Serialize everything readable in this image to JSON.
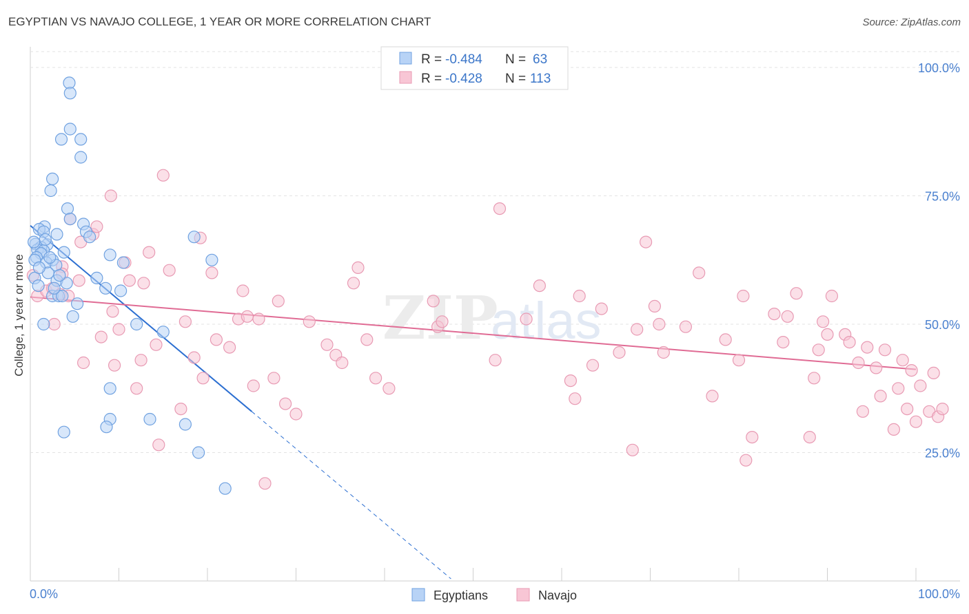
{
  "chart_data": {
    "type": "scatter",
    "title": "EGYPTIAN VS NAVAJO COLLEGE, 1 YEAR OR MORE CORRELATION CHART",
    "source": "Source: ZipAtlas.com",
    "xlabel": "",
    "ylabel": "College, 1 year or more",
    "xlim": [
      0,
      100
    ],
    "ylim": [
      0,
      104
    ],
    "x_tick_labels": {
      "left": "0.0%",
      "right": "100.0%"
    },
    "y_ticks": [
      {
        "value": 25,
        "label": "25.0%"
      },
      {
        "value": 50,
        "label": "50.0%"
      },
      {
        "value": 75,
        "label": "75.0%"
      },
      {
        "value": 100,
        "label": "100.0%"
      }
    ],
    "grid": true,
    "watermark": "ZIPatlas",
    "legend": {
      "stats": [
        {
          "r_label": "R = ",
          "r_value": "-0.484",
          "n_label": "N = ",
          "n_value": "63"
        },
        {
          "r_label": "R = ",
          "r_value": "-0.428",
          "n_label": "N = ",
          "n_value": "113"
        }
      ],
      "position": "top-center"
    },
    "colors": {
      "egyptians_fill": "#b8d3f6",
      "egyptians_stroke": "#6fa1e0",
      "egyptians_line": "#2c6fd1",
      "navajo_fill": "#f8c6d5",
      "navajo_stroke": "#e89ab3",
      "navajo_line": "#e06b94",
      "value_text": "#3b76c9",
      "tick_text": "#4a80cf"
    },
    "series": [
      {
        "name": "Egyptians",
        "trend": {
          "x0": 0,
          "y0": 69.2,
          "x1": 25,
          "y1": 33.0,
          "dash_to_x": 47.5
        },
        "points": [
          [
            4.4,
            97.0
          ],
          [
            4.5,
            95.0
          ],
          [
            4.5,
            88.0
          ],
          [
            3.5,
            86.0
          ],
          [
            5.7,
            86.0
          ],
          [
            5.7,
            82.5
          ],
          [
            2.5,
            78.3
          ],
          [
            2.3,
            76.0
          ],
          [
            4.2,
            72.5
          ],
          [
            6.0,
            69.5
          ],
          [
            1.6,
            69.0
          ],
          [
            1.0,
            68.5
          ],
          [
            1.5,
            68.0
          ],
          [
            6.3,
            68.0
          ],
          [
            3.0,
            67.5
          ],
          [
            4.5,
            70.5
          ],
          [
            6.7,
            67.0
          ],
          [
            18.5,
            67.0
          ],
          [
            0.6,
            65.6
          ],
          [
            1.9,
            65.5
          ],
          [
            1.2,
            65.0
          ],
          [
            0.8,
            64.5
          ],
          [
            1.5,
            64.3
          ],
          [
            1.2,
            63.8
          ],
          [
            0.7,
            63.0
          ],
          [
            3.8,
            64.0
          ],
          [
            9.0,
            63.5
          ],
          [
            2.5,
            62.5
          ],
          [
            1.8,
            62.0
          ],
          [
            2.9,
            61.5
          ],
          [
            0.5,
            62.5
          ],
          [
            10.5,
            62.0
          ],
          [
            20.5,
            62.5
          ],
          [
            3.0,
            58.5
          ],
          [
            4.1,
            58.0
          ],
          [
            8.5,
            57.0
          ],
          [
            10.2,
            56.5
          ],
          [
            2.5,
            55.5
          ],
          [
            3.2,
            55.5
          ],
          [
            3.6,
            55.5
          ],
          [
            5.3,
            54.0
          ],
          [
            4.8,
            51.5
          ],
          [
            1.5,
            50.0
          ],
          [
            15.0,
            48.5
          ],
          [
            9.0,
            37.5
          ],
          [
            9.0,
            31.5
          ],
          [
            13.5,
            31.5
          ],
          [
            8.6,
            30.0
          ],
          [
            17.5,
            30.5
          ],
          [
            3.8,
            29.0
          ],
          [
            19.0,
            25.0
          ],
          [
            22.0,
            18.0
          ],
          [
            0.5,
            59.0
          ],
          [
            2.0,
            60.0
          ],
          [
            1.0,
            61.0
          ],
          [
            2.2,
            63.0
          ],
          [
            0.4,
            66.0
          ],
          [
            1.7,
            66.5
          ],
          [
            3.3,
            59.5
          ],
          [
            7.5,
            59.0
          ],
          [
            0.9,
            57.5
          ],
          [
            2.7,
            57.0
          ],
          [
            12.0,
            50.0
          ]
        ]
      },
      {
        "name": "Navajo",
        "trend": {
          "x0": 0,
          "y0": 55.3,
          "x1": 100,
          "y1": 41.2
        },
        "points": [
          [
            0.3,
            59.5
          ],
          [
            0.8,
            55.5
          ],
          [
            1.8,
            56.5
          ],
          [
            2.5,
            57.0
          ],
          [
            3.4,
            55.8
          ],
          [
            4.3,
            55.5
          ],
          [
            2.7,
            50.0
          ],
          [
            3.6,
            61.2
          ],
          [
            3.6,
            59.8
          ],
          [
            4.5,
            70.5
          ],
          [
            5.5,
            58.5
          ],
          [
            5.7,
            66.0
          ],
          [
            6.0,
            42.5
          ],
          [
            7.1,
            67.5
          ],
          [
            7.5,
            69.0
          ],
          [
            8.0,
            47.5
          ],
          [
            9.1,
            75.0
          ],
          [
            9.3,
            52.5
          ],
          [
            9.5,
            42.0
          ],
          [
            10.0,
            49.0
          ],
          [
            10.7,
            62.0
          ],
          [
            11.2,
            58.5
          ],
          [
            12.0,
            37.5
          ],
          [
            12.5,
            43.0
          ],
          [
            12.8,
            58.0
          ],
          [
            13.4,
            64.0
          ],
          [
            14.2,
            46.0
          ],
          [
            14.5,
            26.5
          ],
          [
            15.0,
            79.0
          ],
          [
            15.7,
            60.5
          ],
          [
            17.0,
            33.5
          ],
          [
            17.5,
            50.5
          ],
          [
            18.5,
            43.5
          ],
          [
            19.2,
            66.8
          ],
          [
            19.5,
            39.5
          ],
          [
            20.5,
            60.0
          ],
          [
            21.0,
            47.0
          ],
          [
            22.5,
            45.5
          ],
          [
            23.5,
            51.0
          ],
          [
            24.0,
            56.5
          ],
          [
            24.5,
            51.5
          ],
          [
            25.2,
            38.0
          ],
          [
            25.8,
            51.0
          ],
          [
            26.5,
            19.0
          ],
          [
            27.5,
            39.5
          ],
          [
            28.0,
            54.5
          ],
          [
            28.8,
            34.5
          ],
          [
            30.0,
            32.5
          ],
          [
            31.5,
            50.5
          ],
          [
            33.5,
            46.0
          ],
          [
            34.5,
            44.0
          ],
          [
            35.2,
            42.5
          ],
          [
            36.5,
            58.0
          ],
          [
            37.0,
            61.0
          ],
          [
            38.0,
            47.0
          ],
          [
            39.0,
            39.5
          ],
          [
            40.5,
            37.5
          ],
          [
            45.5,
            54.5
          ],
          [
            46.0,
            49.5
          ],
          [
            46.5,
            50.5
          ],
          [
            52.5,
            43.0
          ],
          [
            53.0,
            72.5
          ],
          [
            56.0,
            51.0
          ],
          [
            57.5,
            57.5
          ],
          [
            61.0,
            39.0
          ],
          [
            61.5,
            35.5
          ],
          [
            62.0,
            55.5
          ],
          [
            63.5,
            42.0
          ],
          [
            64.5,
            53.0
          ],
          [
            66.5,
            44.5
          ],
          [
            68.0,
            25.5
          ],
          [
            68.5,
            49.0
          ],
          [
            69.5,
            66.0
          ],
          [
            70.5,
            53.5
          ],
          [
            71.0,
            50.0
          ],
          [
            71.5,
            44.5
          ],
          [
            74.0,
            49.5
          ],
          [
            75.5,
            60.0
          ],
          [
            77.0,
            36.0
          ],
          [
            78.5,
            47.0
          ],
          [
            80.0,
            43.0
          ],
          [
            80.5,
            55.5
          ],
          [
            80.8,
            23.5
          ],
          [
            81.5,
            28.0
          ],
          [
            84.0,
            52.0
          ],
          [
            85.0,
            46.5
          ],
          [
            85.5,
            51.5
          ],
          [
            86.5,
            56.0
          ],
          [
            88.0,
            28.0
          ],
          [
            88.5,
            39.5
          ],
          [
            89.0,
            45.0
          ],
          [
            89.5,
            50.5
          ],
          [
            90.0,
            48.0
          ],
          [
            90.5,
            55.5
          ],
          [
            92.0,
            48.0
          ],
          [
            92.5,
            46.5
          ],
          [
            93.5,
            42.5
          ],
          [
            94.0,
            33.0
          ],
          [
            94.5,
            45.5
          ],
          [
            95.5,
            41.5
          ],
          [
            96.0,
            36.0
          ],
          [
            96.5,
            45.0
          ],
          [
            97.5,
            29.5
          ],
          [
            98.0,
            37.5
          ],
          [
            98.5,
            43.0
          ],
          [
            99.0,
            33.5
          ],
          [
            99.5,
            41.0
          ],
          [
            100.0,
            31.0
          ],
          [
            100.5,
            38.0
          ],
          [
            101.5,
            33.0
          ],
          [
            102.0,
            40.5
          ],
          [
            102.5,
            32.0
          ],
          [
            103.0,
            33.5
          ]
        ]
      }
    ]
  }
}
